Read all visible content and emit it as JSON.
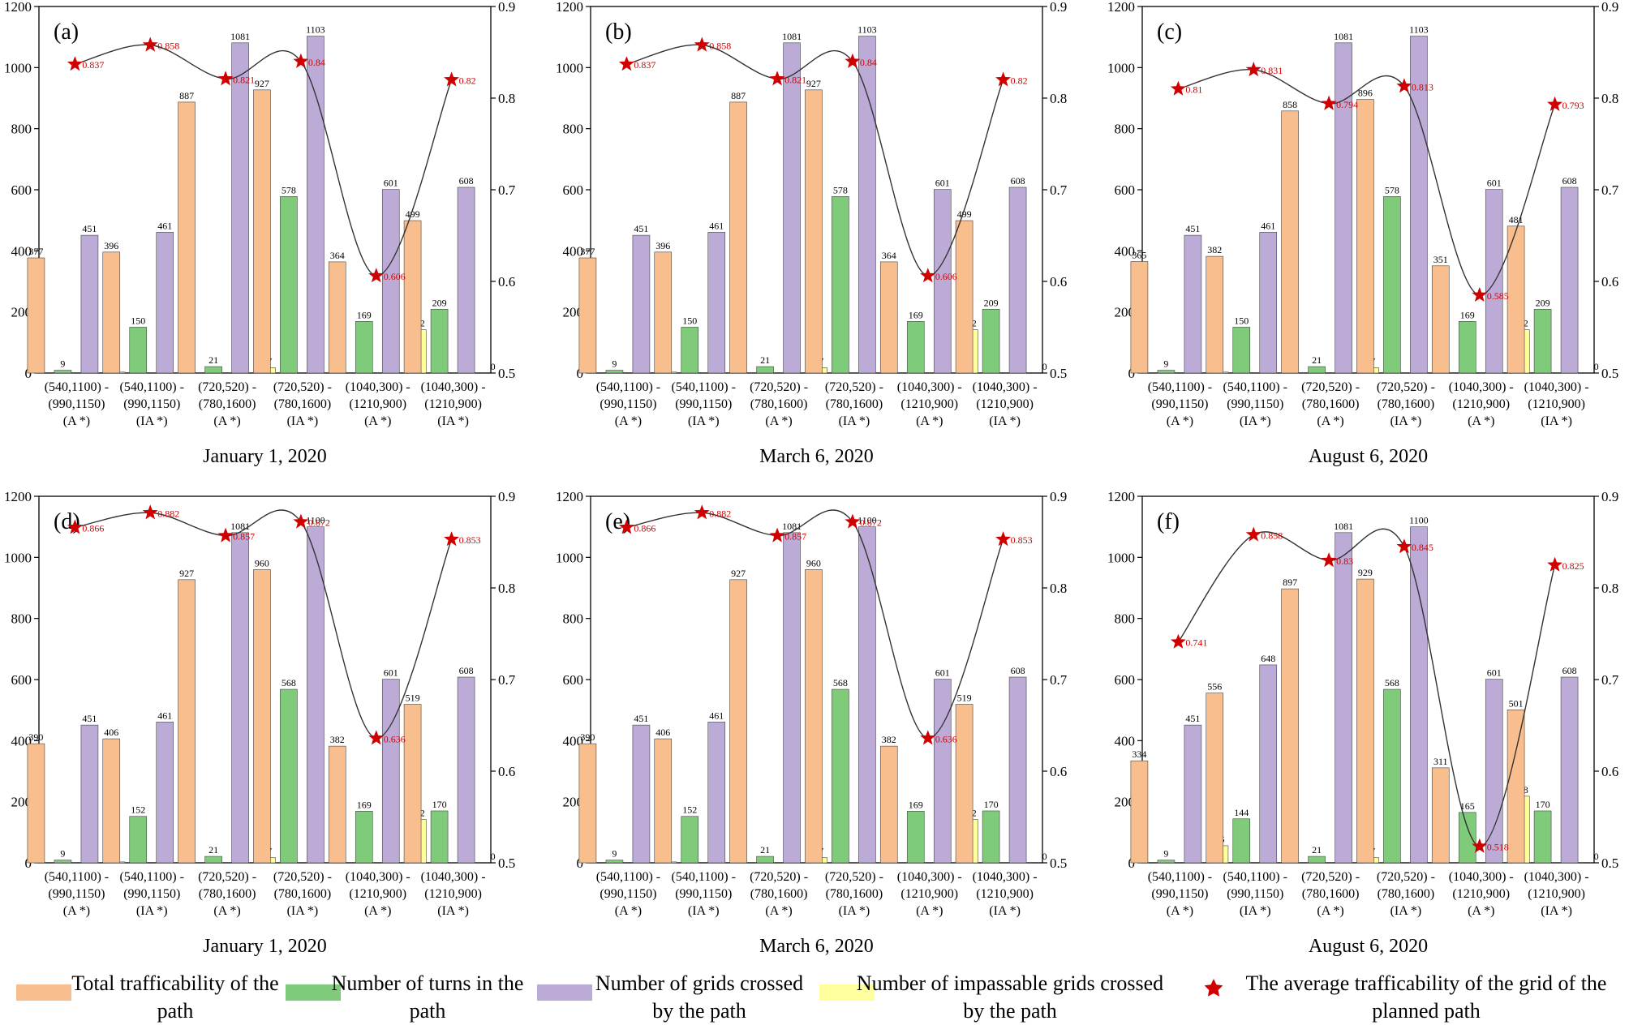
{
  "colors": {
    "total": "#F9BE8D",
    "turns": "#7FCB7A",
    "grids": "#BCABD6",
    "impassable": "#FFFFA0",
    "star": "#D00000",
    "curve": "#333333"
  },
  "chart_data": [
    {
      "type": "bar",
      "panel": "(a)",
      "caption": "January 1, 2020",
      "categories": [
        "(540,1100) -\n(990,1150)\n(A *)",
        "(540,1100) -\n(990,1150)\n(IA *)",
        "(720,520) -\n(780,1600)\n(A *)",
        "(720,520) -\n(780,1600)\n(IA *)",
        "(1040,300) -\n(1210,900)\n(A *)",
        "(1040,300) -\n(1210,900)\n(IA *)"
      ],
      "ylim": [
        0,
        1200
      ],
      "y2lim": [
        0.5,
        0.9
      ],
      "yticks": [
        0,
        200,
        400,
        600,
        800,
        1000,
        1200
      ],
      "y2ticks": [
        0.5,
        0.6,
        0.7,
        0.8,
        0.9
      ],
      "series": [
        {
          "name": "Total trafficability of the path",
          "values": [
            377,
            396,
            887,
            927,
            364,
            499
          ]
        },
        {
          "name": "Number of turns in the path",
          "values": [
            9,
            150,
            21,
            578,
            169,
            209
          ]
        },
        {
          "name": "Number of grids crossed by the path",
          "values": [
            451,
            461,
            1081,
            1103,
            601,
            608
          ]
        },
        {
          "name": "Number of impassable grids crossed by the path",
          "values": [
            3,
            0,
            17,
            0,
            142,
            0
          ]
        }
      ],
      "average_trafficability": [
        0.837,
        0.858,
        0.821,
        0.84,
        0.606,
        0.82
      ]
    },
    {
      "type": "bar",
      "panel": "(b)",
      "caption": "March 6, 2020",
      "categories": [
        "(540,1100) -\n(990,1150)\n(A *)",
        "(540,1100) -\n(990,1150)\n(IA *)",
        "(720,520) -\n(780,1600)\n(A *)",
        "(720,520) -\n(780,1600)\n(IA *)",
        "(1040,300) -\n(1210,900)\n(A *)",
        "(1040,300) -\n(1210,900)\n(IA *)"
      ],
      "ylim": [
        0,
        1200
      ],
      "y2lim": [
        0.5,
        0.9
      ],
      "yticks": [
        0,
        200,
        400,
        600,
        800,
        1000,
        1200
      ],
      "y2ticks": [
        0.5,
        0.6,
        0.7,
        0.8,
        0.9
      ],
      "series": [
        {
          "name": "Total trafficability of the path",
          "values": [
            377,
            396,
            887,
            927,
            364,
            499
          ]
        },
        {
          "name": "Number of turns in the path",
          "values": [
            9,
            150,
            21,
            578,
            169,
            209
          ]
        },
        {
          "name": "Number of grids crossed by the path",
          "values": [
            451,
            461,
            1081,
            1103,
            601,
            608
          ]
        },
        {
          "name": "Number of impassable grids crossed by the path",
          "values": [
            3,
            0,
            17,
            0,
            142,
            0
          ]
        }
      ],
      "average_trafficability": [
        0.837,
        0.858,
        0.821,
        0.84,
        0.606,
        0.82
      ]
    },
    {
      "type": "bar",
      "panel": "(c)",
      "caption": "August 6, 2020",
      "categories": [
        "(540,1100) -\n(990,1150)\n(A *)",
        "(540,1100) -\n(990,1150)\n(IA *)",
        "(720,520) -\n(780,1600)\n(A *)",
        "(720,520) -\n(780,1600)\n(IA *)",
        "(1040,300) -\n(1210,900)\n(A *)",
        "(1040,300) -\n(1210,900)\n(IA *)"
      ],
      "ylim": [
        0,
        1200
      ],
      "y2lim": [
        0.5,
        0.9
      ],
      "yticks": [
        0,
        200,
        400,
        600,
        800,
        1000,
        1200
      ],
      "y2ticks": [
        0.5,
        0.6,
        0.7,
        0.8,
        0.9
      ],
      "series": [
        {
          "name": "Total trafficability of the path",
          "values": [
            365,
            382,
            858,
            896,
            351,
            481
          ]
        },
        {
          "name": "Number of turns in the path",
          "values": [
            9,
            150,
            21,
            578,
            169,
            209
          ]
        },
        {
          "name": "Number of grids crossed by the path",
          "values": [
            451,
            461,
            1081,
            1103,
            601,
            608
          ]
        },
        {
          "name": "Number of impassable grids crossed by the path",
          "values": [
            3,
            0,
            17,
            0,
            142,
            0
          ]
        }
      ],
      "average_trafficability": [
        0.81,
        0.831,
        0.794,
        0.813,
        0.585,
        0.793
      ]
    },
    {
      "type": "bar",
      "panel": "(d)",
      "caption": "January 1, 2020",
      "categories": [
        "(540,1100) -\n(990,1150)\n(A *)",
        "(540,1100) -\n(990,1150)\n(IA *)",
        "(720,520) -\n(780,1600)\n(A *)",
        "(720,520) -\n(780,1600)\n(IA *)",
        "(1040,300) -\n(1210,900)\n(A *)",
        "(1040,300) -\n(1210,900)\n(IA *)"
      ],
      "ylim": [
        0,
        1200
      ],
      "y2lim": [
        0.5,
        0.9
      ],
      "yticks": [
        0,
        200,
        400,
        600,
        800,
        1000,
        1200
      ],
      "y2ticks": [
        0.5,
        0.6,
        0.7,
        0.8,
        0.9
      ],
      "series": [
        {
          "name": "Total trafficability of the path",
          "values": [
            390,
            406,
            927,
            960,
            382,
            519
          ]
        },
        {
          "name": "Number of turns in the path",
          "values": [
            9,
            152,
            21,
            568,
            169,
            170
          ]
        },
        {
          "name": "Number of grids crossed by the path",
          "values": [
            451,
            461,
            1081,
            1100,
            601,
            608
          ]
        },
        {
          "name": "Number of impassable grids crossed by the path",
          "values": [
            3,
            0,
            17,
            0,
            142,
            0
          ]
        }
      ],
      "average_trafficability": [
        0.866,
        0.882,
        0.857,
        0.872,
        0.636,
        0.853
      ]
    },
    {
      "type": "bar",
      "panel": "(e)",
      "caption": "March 6, 2020",
      "categories": [
        "(540,1100) -\n(990,1150)\n(A *)",
        "(540,1100) -\n(990,1150)\n(IA *)",
        "(720,520) -\n(780,1600)\n(A *)",
        "(720,520) -\n(780,1600)\n(IA *)",
        "(1040,300) -\n(1210,900)\n(A *)",
        "(1040,300) -\n(1210,900)\n(IA *)"
      ],
      "ylim": [
        0,
        1200
      ],
      "y2lim": [
        0.5,
        0.9
      ],
      "yticks": [
        0,
        200,
        400,
        600,
        800,
        1000,
        1200
      ],
      "y2ticks": [
        0.5,
        0.6,
        0.7,
        0.8,
        0.9
      ],
      "series": [
        {
          "name": "Total trafficability of the path",
          "values": [
            390,
            406,
            927,
            960,
            382,
            519
          ]
        },
        {
          "name": "Number of turns in the path",
          "values": [
            9,
            152,
            21,
            568,
            169,
            170
          ]
        },
        {
          "name": "Number of grids crossed by the path",
          "values": [
            451,
            461,
            1081,
            1100,
            601,
            608
          ]
        },
        {
          "name": "Number of impassable grids crossed by the path",
          "values": [
            3,
            0,
            17,
            0,
            142,
            0
          ]
        }
      ],
      "average_trafficability": [
        0.866,
        0.882,
        0.857,
        0.872,
        0.636,
        0.853
      ]
    },
    {
      "type": "bar",
      "panel": "(f)",
      "caption": "August 6, 2020",
      "categories": [
        "(540,1100) -\n(990,1150)\n(A *)",
        "(540,1100) -\n(990,1150)\n(IA *)",
        "(720,520) -\n(780,1600)\n(A *)",
        "(720,520) -\n(780,1600)\n(IA *)",
        "(1040,300) -\n(1210,900)\n(A *)",
        "(1040,300) -\n(1210,900)\n(IA *)"
      ],
      "ylim": [
        0,
        1200
      ],
      "y2lim": [
        0.5,
        0.9
      ],
      "yticks": [
        0,
        200,
        400,
        600,
        800,
        1000,
        1200
      ],
      "y2ticks": [
        0.5,
        0.6,
        0.7,
        0.8,
        0.9
      ],
      "series": [
        {
          "name": "Total trafficability of the path",
          "values": [
            334,
            556,
            897,
            929,
            311,
            501
          ]
        },
        {
          "name": "Number of turns in the path",
          "values": [
            9,
            144,
            21,
            568,
            165,
            170
          ]
        },
        {
          "name": "Number of grids crossed by the path",
          "values": [
            451,
            648,
            1081,
            1100,
            601,
            608
          ]
        },
        {
          "name": "Number of impassable grids crossed by the path",
          "values": [
            56,
            0,
            17,
            0,
            218,
            0
          ]
        }
      ],
      "average_trafficability": [
        0.741,
        0.858,
        0.83,
        0.845,
        0.518,
        0.825
      ]
    }
  ],
  "legend": {
    "total": "Total trafficability of the path",
    "turns": "Number of turns in the path",
    "grids": "Number of grids crossed by the path",
    "impassable": "Number of impassable grids crossed by the path",
    "average": "The average trafficability of the grid of the planned path"
  }
}
